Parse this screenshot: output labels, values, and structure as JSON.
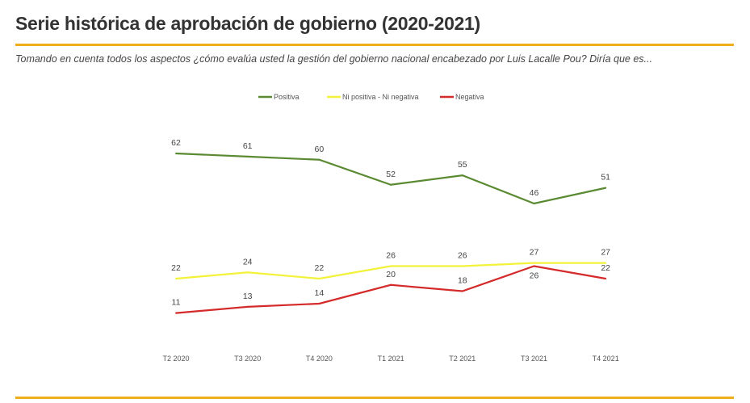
{
  "chart_data": {
    "type": "line",
    "title": "Serie histórica de aprobación de gobierno (2020-2021)",
    "subtitle": "Tomando en cuenta todos los aspectos ¿cómo evalúa usted la gestión del gobierno nacional encabezado por Luis Lacalle Pou? Diría que es...",
    "categories": [
      "T2 2020",
      "T3 2020",
      "T4 2020",
      "T1 2021",
      "T2 2021",
      "T3 2021",
      "T4 2021"
    ],
    "series": [
      {
        "name": "Positiva",
        "color": "#5a8a32",
        "values": [
          62,
          61,
          60,
          52,
          55,
          46,
          51
        ]
      },
      {
        "name": "Ni positiva - Ni negativa",
        "color": "#f2f23a",
        "values": [
          22,
          24,
          22,
          26,
          26,
          27,
          27
        ]
      },
      {
        "name": "Negativa",
        "color": "#d42a2a",
        "values": [
          11,
          13,
          14,
          20,
          18,
          26,
          22
        ]
      }
    ],
    "legend_position": "top",
    "grid": false,
    "y_axis_visible": false,
    "accent_color": "#f0ad1c"
  }
}
